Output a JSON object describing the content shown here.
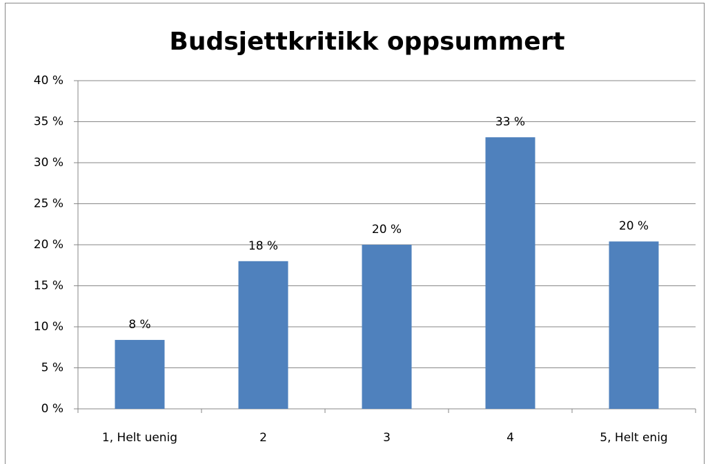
{
  "chart_data": {
    "type": "bar",
    "title": "Budsjettkritikk oppsummert",
    "categories": [
      "1, Helt uenig",
      "2",
      "3",
      "4",
      "5, Helt enig"
    ],
    "values": [
      8.4,
      18,
      20,
      33.1,
      20.4
    ],
    "value_labels": [
      "8 %",
      "18 %",
      "20 %",
      "33 %",
      "20 %"
    ],
    "color": "#4f81bd",
    "ylim": [
      0,
      40
    ],
    "yticks": [
      {
        "value": 0,
        "label": "0 %"
      },
      {
        "value": 5,
        "label": "5 %"
      },
      {
        "value": 10,
        "label": "10 %"
      },
      {
        "value": 15,
        "label": "15 %"
      },
      {
        "value": 20,
        "label": "20 %"
      },
      {
        "value": 25,
        "label": "25 %"
      },
      {
        "value": 30,
        "label": "30 %"
      },
      {
        "value": 35,
        "label": "35 %"
      },
      {
        "value": 40,
        "label": "40 %"
      }
    ],
    "grid": true
  }
}
